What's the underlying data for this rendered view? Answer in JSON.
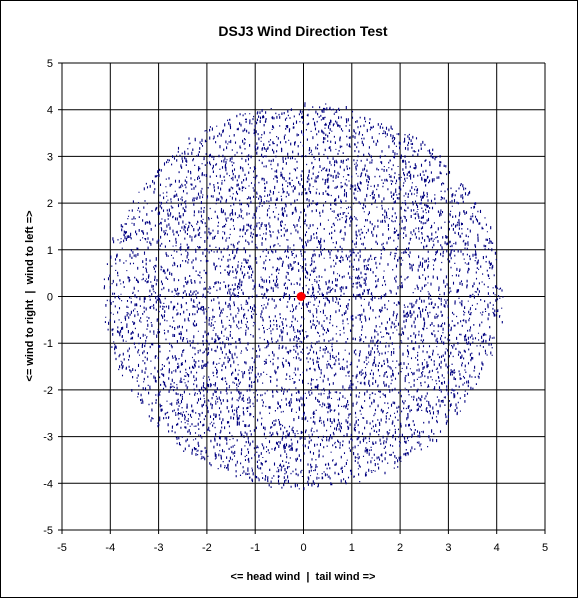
{
  "chart_data": {
    "type": "scatter",
    "title": "DSJ3 Wind Direction Test",
    "xlabel": "<= head wind  |  tail wind =>",
    "ylabel": "<= wind to right  |  wind to left =>",
    "xlim": [
      -5,
      5
    ],
    "ylim": [
      -5,
      5
    ],
    "xticks": [
      "-5",
      "-4",
      "-3",
      "-2",
      "-1",
      "0",
      "1",
      "2",
      "3",
      "4",
      "5"
    ],
    "yticks": [
      "5",
      "4",
      "3",
      "2",
      "1",
      "0",
      "-1",
      "-2",
      "-3",
      "-4",
      "-5"
    ],
    "grid": true,
    "legend": "none",
    "series": [
      {
        "marker": "small-dash",
        "color": "#000080",
        "distribution": "uniform disc",
        "center": [
          0,
          0
        ],
        "radius": 4.1,
        "count": 6000
      },
      {
        "marker": "circle",
        "color": "#ff0000",
        "points": [
          [
            -0.05,
            0.0
          ]
        ]
      }
    ]
  }
}
